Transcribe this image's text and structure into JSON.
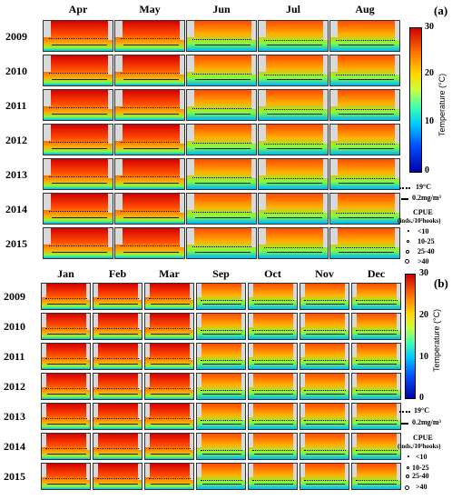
{
  "panel_a": {
    "label": "(a)",
    "months": [
      "Apr",
      "May",
      "Jun",
      "Jul",
      "Aug"
    ],
    "years": [
      "2009",
      "2010",
      "2011",
      "2012",
      "2013",
      "2014",
      "2015"
    ],
    "colorbar": {
      "ticks": [
        "30",
        "20",
        "10",
        "0"
      ],
      "title": "Temperature (°C)"
    },
    "legend": {
      "isotherm": "19°C",
      "chlorophyll": "0.2mg/m³",
      "cpue_title": "CPUE",
      "cpue_unit": "(inds./10³hooks)",
      "classes": [
        "<10",
        "10-25",
        "25-40",
        ">40"
      ]
    }
  },
  "panel_b": {
    "label": "(b)",
    "months": [
      "Jan",
      "Feb",
      "Mar",
      "Sep",
      "Oct",
      "Nov",
      "Dec"
    ],
    "years": [
      "2009",
      "2010",
      "2011",
      "2012",
      "2013",
      "2014",
      "2015"
    ],
    "colorbar": {
      "ticks": [
        "30",
        "20",
        "10",
        "0"
      ],
      "title": "Temperature (°C)"
    },
    "legend": {
      "isotherm": "19°C",
      "chlorophyll": "0.2mg/m³",
      "cpue_title": "CPUE",
      "cpue_unit": "(inds./10³hooks)",
      "classes": [
        "<10",
        "10-25",
        "25-40",
        ">40"
      ]
    }
  },
  "colors": {
    "warm": "#d40000",
    "hot": "#ff4a00",
    "mid": "#ffb000",
    "cool": "#7fff40",
    "cold": "#00b4ff",
    "land": "#d9d9d9"
  }
}
